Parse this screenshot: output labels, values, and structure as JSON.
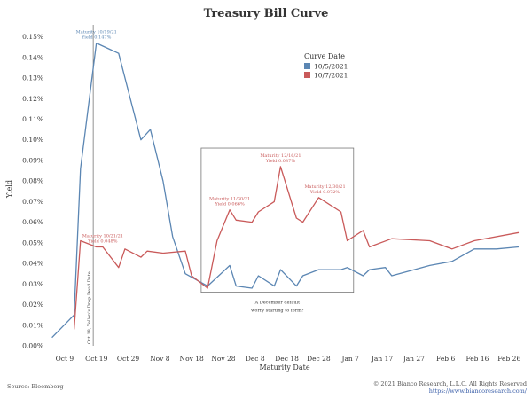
{
  "chart_data": {
    "type": "line",
    "title": "Treasury Bill Curve",
    "xlabel": "Maturity Date",
    "ylabel": "Yield",
    "ylim": [
      0,
      0.155
    ],
    "y_ticks": [
      "0.00%",
      "0.01%",
      "0.02%",
      "0.03%",
      "0.04%",
      "0.05%",
      "0.06%",
      "0.07%",
      "0.08%",
      "0.09%",
      "0.10%",
      "0.11%",
      "0.12%",
      "0.13%",
      "0.14%",
      "0.15%"
    ],
    "x_ticks": [
      "Oct 9",
      "Oct 19",
      "Oct 29",
      "Nov 8",
      "Nov 18",
      "Nov 28",
      "Dec 8",
      "Dec 18",
      "Dec 28",
      "Jan 7",
      "Jan 17",
      "Jan 27",
      "Feb 6",
      "Feb 16",
      "Feb 26"
    ],
    "x_range": [
      "2021-10-04",
      "2022-03-01"
    ],
    "legend": {
      "title": "Curve Date",
      "placement": "top-right"
    },
    "grid": false,
    "series": [
      {
        "name": "10/5/2021",
        "color": "#5b86b3",
        "points": [
          [
            "2021-10-05",
            0.004
          ],
          [
            "2021-10-12",
            0.015
          ],
          [
            "2021-10-14",
            0.086
          ],
          [
            "2021-10-19",
            0.147
          ],
          [
            "2021-10-26",
            0.142
          ],
          [
            "2021-11-02",
            0.1
          ],
          [
            "2021-11-05",
            0.105
          ],
          [
            "2021-11-09",
            0.08
          ],
          [
            "2021-11-12",
            0.053
          ],
          [
            "2021-11-16",
            0.035
          ],
          [
            "2021-11-23",
            0.029
          ],
          [
            "2021-11-30",
            0.039
          ],
          [
            "2021-12-02",
            0.029
          ],
          [
            "2021-12-07",
            0.028
          ],
          [
            "2021-12-09",
            0.034
          ],
          [
            "2021-12-14",
            0.029
          ],
          [
            "2021-12-16",
            0.037
          ],
          [
            "2021-12-21",
            0.029
          ],
          [
            "2021-12-23",
            0.034
          ],
          [
            "2021-12-28",
            0.037
          ],
          [
            "2022-01-04",
            0.037
          ],
          [
            "2022-01-06",
            0.038
          ],
          [
            "2022-01-11",
            0.034
          ],
          [
            "2022-01-13",
            0.037
          ],
          [
            "2022-01-18",
            0.038
          ],
          [
            "2022-01-20",
            0.034
          ],
          [
            "2022-02-01",
            0.039
          ],
          [
            "2022-02-08",
            0.041
          ],
          [
            "2022-02-15",
            0.047
          ],
          [
            "2022-02-22",
            0.047
          ],
          [
            "2022-03-01",
            0.048
          ]
        ]
      },
      {
        "name": "10/7/2021",
        "color": "#c95a5a",
        "points": [
          [
            "2021-10-12",
            0.008
          ],
          [
            "2021-10-14",
            0.051
          ],
          [
            "2021-10-19",
            0.048
          ],
          [
            "2021-10-21",
            0.048
          ],
          [
            "2021-10-26",
            0.038
          ],
          [
            "2021-10-28",
            0.047
          ],
          [
            "2021-11-02",
            0.043
          ],
          [
            "2021-11-04",
            0.046
          ],
          [
            "2021-11-09",
            0.045
          ],
          [
            "2021-11-16",
            0.046
          ],
          [
            "2021-11-18",
            0.034
          ],
          [
            "2021-11-23",
            0.028
          ],
          [
            "2021-11-26",
            0.051
          ],
          [
            "2021-11-30",
            0.066
          ],
          [
            "2021-12-02",
            0.061
          ],
          [
            "2021-12-07",
            0.06
          ],
          [
            "2021-12-09",
            0.065
          ],
          [
            "2021-12-14",
            0.07
          ],
          [
            "2021-12-16",
            0.087
          ],
          [
            "2021-12-21",
            0.062
          ],
          [
            "2021-12-23",
            0.06
          ],
          [
            "2021-12-28",
            0.072
          ],
          [
            "2022-01-04",
            0.065
          ],
          [
            "2022-01-06",
            0.051
          ],
          [
            "2022-01-11",
            0.056
          ],
          [
            "2022-01-13",
            0.048
          ],
          [
            "2022-01-20",
            0.052
          ],
          [
            "2022-02-01",
            0.051
          ],
          [
            "2022-02-08",
            0.047
          ],
          [
            "2022-02-15",
            0.051
          ],
          [
            "2022-03-01",
            0.055
          ]
        ]
      }
    ],
    "annotations": [
      {
        "line1": "Maturity 10/19/21",
        "line2": "Yield 0.147%",
        "x": "2021-10-19",
        "y": 0.147,
        "color": "#5b86b3",
        "dir": "up"
      },
      {
        "line1": "Maturity 10/21/21",
        "line2": "Yield 0.048%",
        "x": "2021-10-21",
        "y": 0.048,
        "color": "#c95a5a",
        "dir": "up"
      },
      {
        "line1": "Maturity 11/30/21",
        "line2": "Yield 0.066%",
        "x": "2021-11-30",
        "y": 0.066,
        "color": "#c95a5a",
        "dir": "up"
      },
      {
        "line1": "Maturity 12/16/21",
        "line2": "Yield 0.087%",
        "x": "2021-12-16",
        "y": 0.087,
        "color": "#c95a5a",
        "dir": "up"
      },
      {
        "line1": "Maturity 12/30/21",
        "line2": "Yield 0.072%",
        "x": "2021-12-30",
        "y": 0.072,
        "color": "#c95a5a",
        "dir": "up"
      }
    ],
    "reference_line": {
      "x": "2021-10-18",
      "label": "Oct 18, Yellen's Drop Dead Date"
    },
    "highlight_box": {
      "x_start": "2021-11-21",
      "x_end": "2022-01-08",
      "y_min": 0.026,
      "y_max": 0.096,
      "caption_line1": "A December default",
      "caption_line2": "worry starting to form?"
    }
  },
  "footer": {
    "source": "Source: Bloomberg",
    "copyright": "© 2021 Bianco Research, L.L.C. All Rights Reserved",
    "url": "https://www.biancoresearch.com/"
  }
}
